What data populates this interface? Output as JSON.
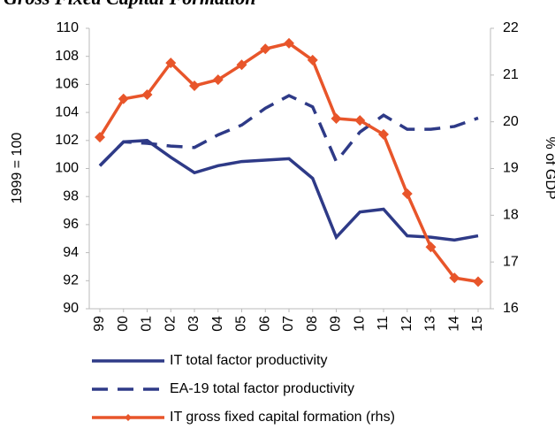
{
  "chart_data": {
    "type": "line",
    "title": "Gross Fixed Capital Formation",
    "ylabel": "1999 = 100",
    "y2label": "% of GDP",
    "categories": [
      "99",
      "00",
      "01",
      "02",
      "03",
      "04",
      "05",
      "06",
      "07",
      "08",
      "09",
      "10",
      "11",
      "12",
      "13",
      "14",
      "15"
    ],
    "ylim": [
      90,
      110
    ],
    "yticks": [
      90,
      92,
      94,
      96,
      98,
      100,
      102,
      104,
      106,
      108,
      110
    ],
    "y2lim": [
      16,
      22
    ],
    "y2ticks": [
      16,
      17,
      18,
      19,
      20,
      21,
      22
    ],
    "series": [
      {
        "name": "IT total factor productivity",
        "color": "#2e3a87",
        "style": "solid",
        "values": [
          100.2,
          101.9,
          102.0,
          100.8,
          99.7,
          100.2,
          100.5,
          100.6,
          100.7,
          99.3,
          95.1,
          96.9,
          97.1,
          95.2,
          95.1,
          94.9,
          95.2
        ]
      },
      {
        "name": "EA-19 total factor productivity",
        "color": "#2e3a87",
        "style": "dashed",
        "values": [
          100.2,
          101.9,
          101.8,
          101.6,
          101.5,
          102.4,
          103.1,
          104.3,
          105.2,
          104.4,
          100.5,
          102.6,
          103.8,
          102.8,
          102.8,
          103.0,
          103.6
        ]
      },
      {
        "name": "IT gross fixed capital formation (rhs)",
        "color": "#e8552a",
        "style": "solid",
        "marker": "diamond",
        "axis": "y2",
        "values": [
          19.67,
          20.49,
          20.58,
          21.26,
          20.77,
          20.9,
          21.22,
          21.56,
          21.68,
          21.32,
          20.07,
          20.03,
          19.73,
          18.46,
          17.32,
          16.66,
          16.58
        ]
      }
    ]
  }
}
